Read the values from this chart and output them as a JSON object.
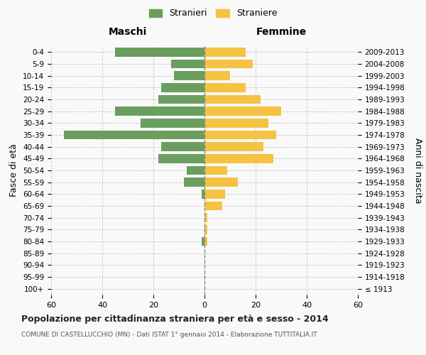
{
  "age_groups": [
    "100+",
    "95-99",
    "90-94",
    "85-89",
    "80-84",
    "75-79",
    "70-74",
    "65-69",
    "60-64",
    "55-59",
    "50-54",
    "45-49",
    "40-44",
    "35-39",
    "30-34",
    "25-29",
    "20-24",
    "15-19",
    "10-14",
    "5-9",
    "0-4"
  ],
  "birth_years": [
    "≤ 1913",
    "1914-1918",
    "1919-1923",
    "1924-1928",
    "1929-1933",
    "1934-1938",
    "1939-1943",
    "1944-1948",
    "1949-1953",
    "1954-1958",
    "1959-1963",
    "1964-1968",
    "1969-1973",
    "1974-1978",
    "1979-1983",
    "1984-1988",
    "1989-1993",
    "1994-1998",
    "1999-2003",
    "2004-2008",
    "2009-2013"
  ],
  "males": [
    0,
    0,
    0,
    0,
    1,
    0,
    0,
    0,
    1,
    8,
    7,
    18,
    17,
    55,
    25,
    35,
    18,
    17,
    12,
    13,
    35
  ],
  "females": [
    0,
    0,
    0,
    0,
    1,
    1,
    1,
    7,
    8,
    13,
    9,
    27,
    23,
    28,
    25,
    30,
    22,
    16,
    10,
    19,
    16
  ],
  "male_color": "#6a9e5e",
  "female_color": "#f5c242",
  "background_color": "#f9f9f9",
  "grid_color": "#cccccc",
  "title": "Popolazione per cittadinanza straniera per età e sesso - 2014",
  "subtitle": "COMUNE DI CASTELLUCCHIO (MN) - Dati ISTAT 1° gennaio 2014 - Elaborazione TUTTITALIA.IT",
  "xlabel_left": "Maschi",
  "xlabel_right": "Femmine",
  "ylabel_left": "Fasce di età",
  "ylabel_right": "Anni di nascita",
  "legend_male": "Stranieri",
  "legend_female": "Straniere",
  "xlim": 60
}
